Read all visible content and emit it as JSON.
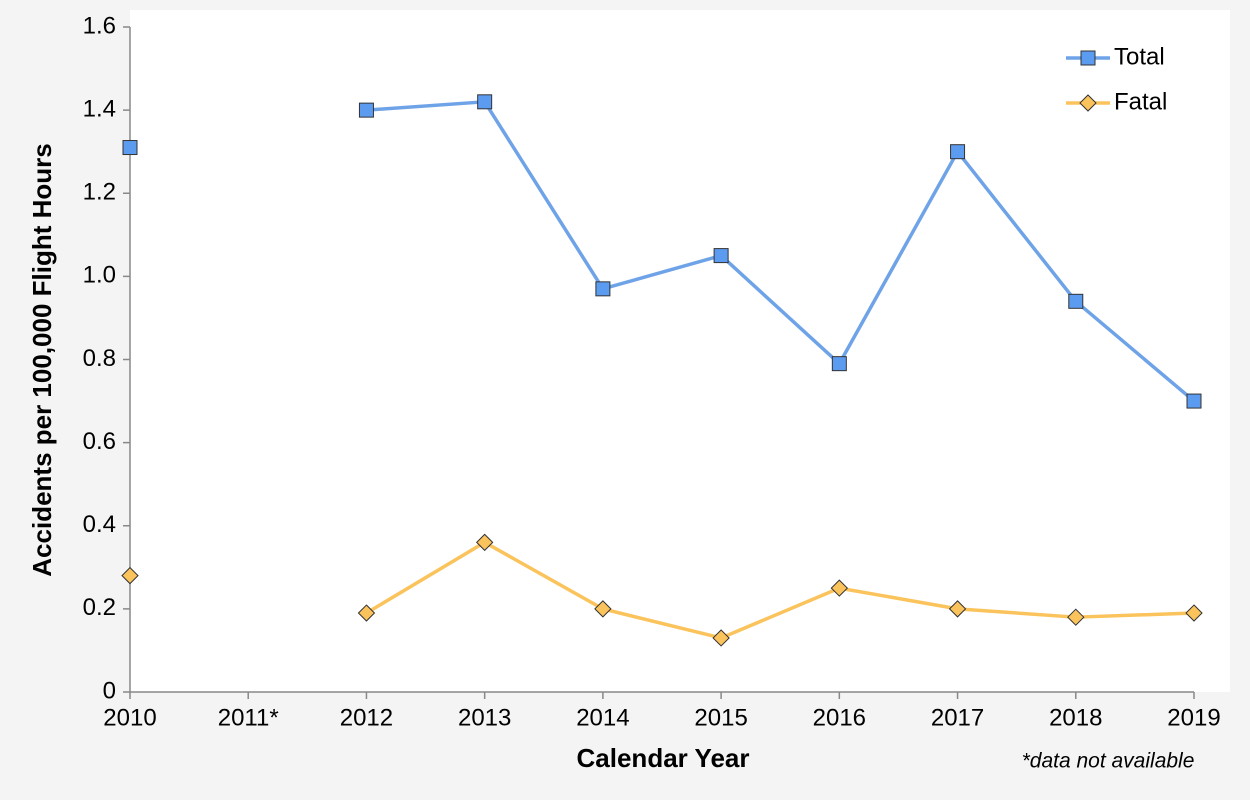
{
  "chart_data": {
    "type": "line",
    "x_label": "Calendar Year",
    "y_label": "Accidents per 100,000 Flight Hours",
    "annotation": "*data not available",
    "categories": [
      "2010",
      "2011*",
      "2012",
      "2013",
      "2014",
      "2015",
      "2016",
      "2017",
      "2018",
      "2019"
    ],
    "series": [
      {
        "name": "Total",
        "color": "#6fa3e8",
        "marker": "square",
        "values": [
          1.31,
          null,
          1.4,
          1.42,
          0.97,
          1.05,
          0.79,
          1.3,
          0.94,
          0.7
        ]
      },
      {
        "name": "Fatal",
        "color": "#fbc35c",
        "marker": "diamond",
        "values": [
          0.28,
          null,
          0.19,
          0.36,
          0.2,
          0.13,
          0.25,
          0.2,
          0.18,
          0.19
        ]
      }
    ],
    "ylim": [
      0,
      1.6
    ],
    "yticks": [
      0,
      0.2,
      0.4,
      0.6,
      0.8,
      {
        "value": 1,
        "label": "1.0"
      },
      1.2,
      1.4,
      1.6
    ],
    "grid": false,
    "legend": "top-right"
  }
}
